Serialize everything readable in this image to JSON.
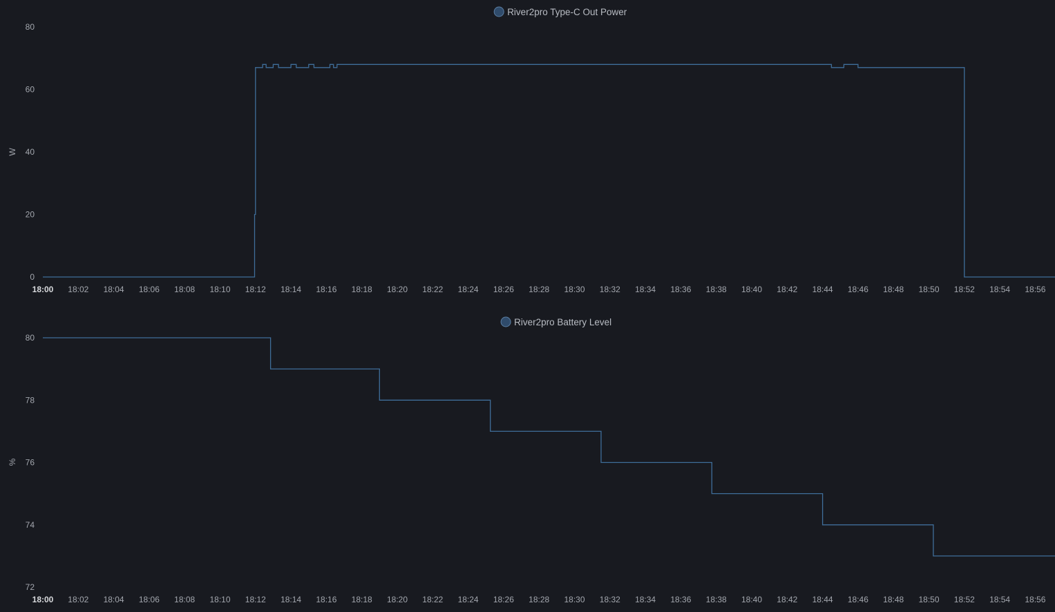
{
  "theme": {
    "background": "#181a20",
    "series_color": "#3f6e9a",
    "legend_marker": "#2f4b6b"
  },
  "chart_data": [
    {
      "type": "line",
      "step": true,
      "series": [
        {
          "name": "River2pro Type-C Out Power",
          "color": "#3f6e9a"
        }
      ],
      "ylabel": "W",
      "ylim": [
        0,
        80
      ],
      "yticks": [
        "0",
        "20",
        "40",
        "60",
        "80"
      ],
      "xticks": [
        "18:00",
        "18:02",
        "18:04",
        "18:06",
        "18:08",
        "18:10",
        "18:12",
        "18:14",
        "18:16",
        "18:18",
        "18:20",
        "18:22",
        "18:24",
        "18:26",
        "18:28",
        "18:30",
        "18:32",
        "18:34",
        "18:36",
        "18:38",
        "18:40",
        "18:42",
        "18:44",
        "18:46",
        "18:48",
        "18:50",
        "18:52",
        "18:54",
        "18:56"
      ],
      "x_minutes": [
        0,
        11.9,
        11.95,
        12.0,
        12.4,
        12.6,
        13.0,
        13.3,
        14.0,
        14.3,
        15.0,
        15.3,
        16.2,
        16.4,
        16.6,
        43.9,
        44.5,
        45.2,
        46.0,
        51.9,
        52.0,
        57.2
      ],
      "y": [
        0,
        0,
        20,
        67,
        68,
        67,
        68,
        67,
        68,
        67,
        68,
        67,
        68,
        67,
        68,
        68,
        67,
        68,
        67,
        67,
        0,
        0
      ],
      "grid": false,
      "legend": "top-center"
    },
    {
      "type": "line",
      "step": true,
      "series": [
        {
          "name": "River2pro Battery Level",
          "color": "#3f6e9a"
        }
      ],
      "ylabel": "%",
      "ylim": [
        72,
        80
      ],
      "yticks": [
        "72",
        "74",
        "76",
        "78",
        "80"
      ],
      "xticks": [
        "18:00",
        "18:02",
        "18:04",
        "18:06",
        "18:08",
        "18:10",
        "18:12",
        "18:14",
        "18:16",
        "18:18",
        "18:20",
        "18:22",
        "18:24",
        "18:26",
        "18:28",
        "18:30",
        "18:32",
        "18:34",
        "18:36",
        "18:38",
        "18:40",
        "18:42",
        "18:44",
        "18:46",
        "18:48",
        "18:50",
        "18:52",
        "18:54",
        "18:56"
      ],
      "x_minutes": [
        0,
        12.85,
        19.0,
        25.25,
        31.5,
        37.75,
        44.0,
        50.25,
        57.2
      ],
      "y": [
        80,
        79,
        78,
        77,
        76,
        75,
        74,
        73,
        73
      ],
      "grid": false,
      "legend": "top-center"
    }
  ]
}
